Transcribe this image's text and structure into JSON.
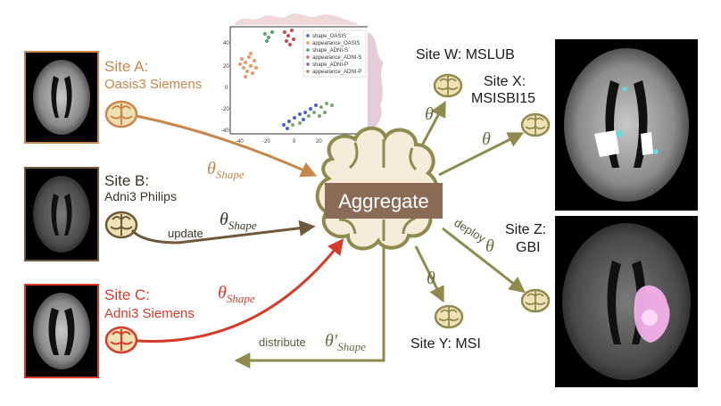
{
  "colors": {
    "site_a": "#c8864a",
    "site_b": "#6e5a3a",
    "site_c": "#d83a2a",
    "aggregate": "#8f8a4e",
    "aggregate_fill": "#f4ecd8",
    "brain_fill": "#efe1b4",
    "text_dark": "#1a1a1a"
  },
  "sites_left": [
    {
      "name": "Site A:",
      "scanner": "Oasis3 Siemens",
      "theta_base": "θ",
      "theta_sub": "Shape",
      "arrow_label": ""
    },
    {
      "name": "Site B:",
      "scanner": "Adni3 Philips",
      "theta_base": "θ",
      "theta_sub": "Shape",
      "arrow_label": "update"
    },
    {
      "name": "Site C:",
      "scanner": "Adni3 Siemens",
      "theta_base": "θ",
      "theta_sub": "Shape",
      "arrow_label": ""
    }
  ],
  "aggregate": {
    "label": "Aggregate"
  },
  "distribute": {
    "label": "distribute",
    "theta_base": "θ′",
    "theta_sub": "Shape"
  },
  "sites_right": [
    {
      "label": "Site W: MSLUB",
      "theta": "θ"
    },
    {
      "label_line1": "Site X:",
      "label_line2": "MSISBI15",
      "theta": "θ"
    },
    {
      "label": "Site Y: MSI",
      "theta": "θ"
    },
    {
      "label_line1": "Site Z:",
      "label_line2": "GBI",
      "theta": "θ",
      "deploy_label": "deploy"
    }
  ],
  "scatter": {
    "legend": [
      "shape_OASIS",
      "appearance_OASIS",
      "shape_ADNI-S",
      "appearance_ADNI-S",
      "shape_ADNI-P",
      "appearance_ADNI-P"
    ],
    "legend_colors": [
      "#4a62c8",
      "#e89a6a",
      "#58a070",
      "#d86a6a",
      "#9a5ab0",
      "#b88a5a"
    ],
    "y_ticks": [
      "40",
      "20",
      "0",
      "-20",
      "-40"
    ],
    "x_ticks": [
      "-40",
      "-20",
      "0",
      "20",
      "40"
    ]
  }
}
